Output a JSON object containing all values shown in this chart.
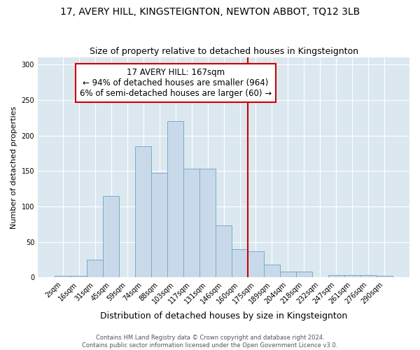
{
  "title": "17, AVERY HILL, KINGSTEIGNTON, NEWTON ABBOT, TQ12 3LB",
  "subtitle": "Size of property relative to detached houses in Kingsteignton",
  "xlabel": "Distribution of detached houses by size in Kingsteignton",
  "ylabel": "Number of detached properties",
  "categories": [
    "2sqm",
    "16sqm",
    "31sqm",
    "45sqm",
    "59sqm",
    "74sqm",
    "88sqm",
    "103sqm",
    "117sqm",
    "131sqm",
    "146sqm",
    "160sqm",
    "175sqm",
    "189sqm",
    "204sqm",
    "218sqm",
    "232sqm",
    "247sqm",
    "261sqm",
    "276sqm",
    "290sqm"
  ],
  "values": [
    2,
    2,
    25,
    115,
    0,
    185,
    147,
    220,
    153,
    153,
    73,
    40,
    37,
    18,
    8,
    8,
    0,
    3,
    3,
    3,
    2
  ],
  "bar_color": "#c8daea",
  "bar_edge_color": "#7aaac8",
  "vline_x_label": "175sqm",
  "vline_color": "#cc0000",
  "annotation_line1": "17 AVERY HILL: 167sqm",
  "annotation_line2": "← 94% of detached houses are smaller (964)",
  "annotation_line3": "6% of semi-detached houses are larger (60) →",
  "annotation_box_color": "#cc0000",
  "ylim": [
    0,
    310
  ],
  "yticks": [
    0,
    50,
    100,
    150,
    200,
    250,
    300
  ],
  "fig_bg_color": "#ffffff",
  "plot_bg_color": "#dce8f0",
  "title_fontsize": 10,
  "subtitle_fontsize": 9,
  "xlabel_fontsize": 9,
  "ylabel_fontsize": 8,
  "tick_fontsize": 7,
  "footer_fontsize": 6,
  "footer": "Contains HM Land Registry data © Crown copyright and database right 2024.\nContains public sector information licensed under the Open Government Licence v3.0.",
  "grid_color": "#ffffff"
}
